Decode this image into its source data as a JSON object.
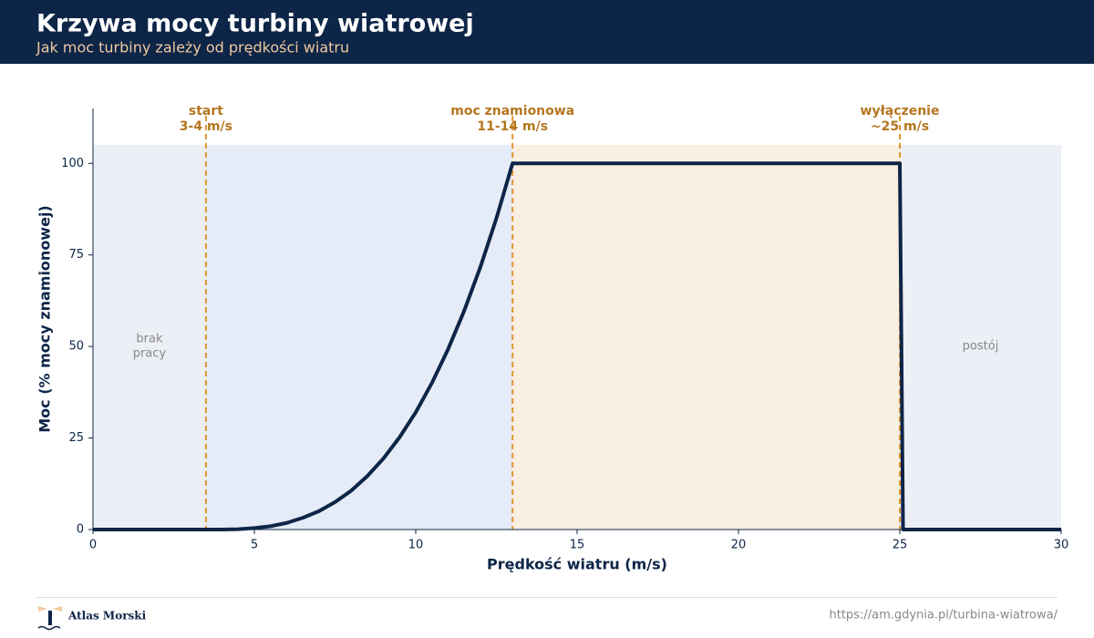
{
  "header": {
    "title": "Krzywa mocy turbiny wiatrowej",
    "subtitle": "Jak moc turbiny zależy od prędkości wiatru"
  },
  "chart_data": {
    "type": "line",
    "x_label": "Prędkość wiatru (m/s)",
    "y_label": "Moc (% mocy znamionowej)",
    "x": [
      0,
      3.5,
      4,
      4.5,
      5,
      5.5,
      6,
      6.5,
      7,
      7.5,
      8,
      8.5,
      9,
      9.5,
      10,
      10.5,
      11,
      11.5,
      12,
      12.5,
      13,
      25,
      25.1,
      30
    ],
    "values": [
      0,
      0,
      0.0,
      0.1,
      0.4,
      0.9,
      1.8,
      3.2,
      5.0,
      7.5,
      10.6,
      14.6,
      19.4,
      25.2,
      32.0,
      40.0,
      49.2,
      59.7,
      71.6,
      85.0,
      100,
      100,
      0,
      0
    ],
    "color": "#0d2547",
    "xlim": [
      0,
      30
    ],
    "xticks": [
      0,
      5,
      10,
      15,
      20,
      25,
      30
    ],
    "ylim": [
      0,
      115
    ],
    "yticks": [
      0,
      25,
      50,
      75,
      100
    ],
    "grid": false,
    "regions": [
      {
        "from": 0,
        "to": 3.5,
        "color": "#eceff5"
      },
      {
        "from": 3.5,
        "to": 13,
        "color": "#e6ecf7"
      },
      {
        "from": 13,
        "to": 25,
        "color": "#f9efe1"
      },
      {
        "from": 25,
        "to": 30,
        "color": "#eceff5"
      }
    ],
    "markers": [
      {
        "x": 3.5,
        "text": [
          "start",
          "3-4 m/s"
        ]
      },
      {
        "x": 13,
        "text": [
          "moc znamionowa",
          "11-14 m/s"
        ]
      },
      {
        "x": 25,
        "text": [
          "wyłączenie",
          "~25 m/s"
        ]
      }
    ],
    "zone_labels": [
      {
        "x": 1.75,
        "y": 50,
        "text": [
          "brak",
          "pracy"
        ]
      },
      {
        "x": 27.5,
        "y": 50,
        "text": [
          "postój"
        ]
      }
    ]
  },
  "footer": {
    "brand": "Atlas Morski",
    "url": "https://am.gdynia.pl/turbina-wiatrowa/"
  }
}
